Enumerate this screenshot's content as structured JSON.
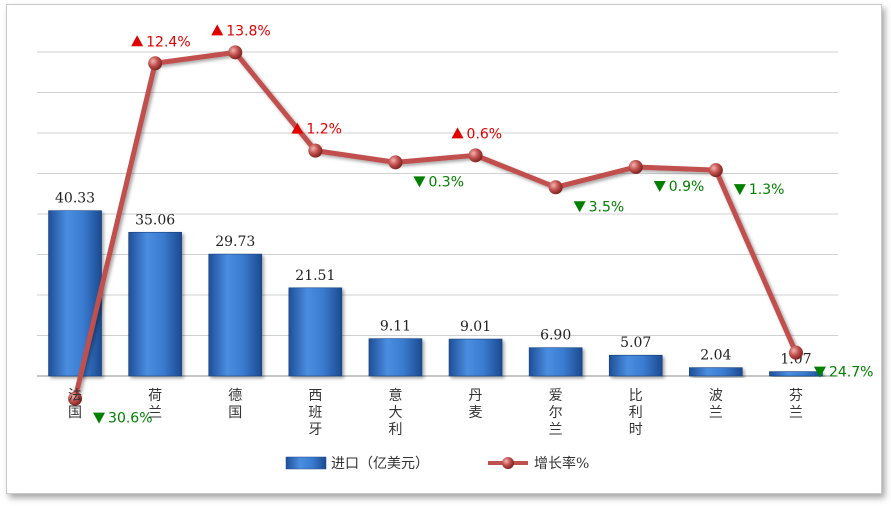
{
  "chart_data": {
    "type": "bar",
    "categories": [
      "法国",
      "荷兰",
      "德国",
      "西班牙",
      "意大利",
      "丹麦",
      "爱尔兰",
      "比利时",
      "波兰",
      "芬兰"
    ],
    "series": [
      {
        "name": "进口（亿美元）",
        "type": "bar",
        "values": [
          40.33,
          35.06,
          29.73,
          21.51,
          9.11,
          9.01,
          6.9,
          5.07,
          2.04,
          1.07
        ],
        "labels": [
          "40.33",
          "35.06",
          "29.73",
          "21.51",
          "9.11",
          "9.01",
          "6.90",
          "5.07",
          "2.04",
          "1.07"
        ],
        "color": "#2f6fc4"
      },
      {
        "name": "增长率%",
        "type": "line",
        "values": [
          -30.6,
          12.4,
          13.8,
          1.2,
          -0.3,
          0.6,
          -3.5,
          -0.9,
          -1.3,
          -24.7
        ],
        "labels": [
          "30.6%",
          "12.4%",
          "13.8%",
          "1.2%",
          "0.3%",
          "0.6%",
          "3.5%",
          "0.9%",
          "1.3%",
          "24.7%"
        ],
        "color": "#c0504d"
      }
    ],
    "legend_position": "bottom",
    "up_color": "#e00000",
    "down_color": "#008000",
    "grid": true
  }
}
